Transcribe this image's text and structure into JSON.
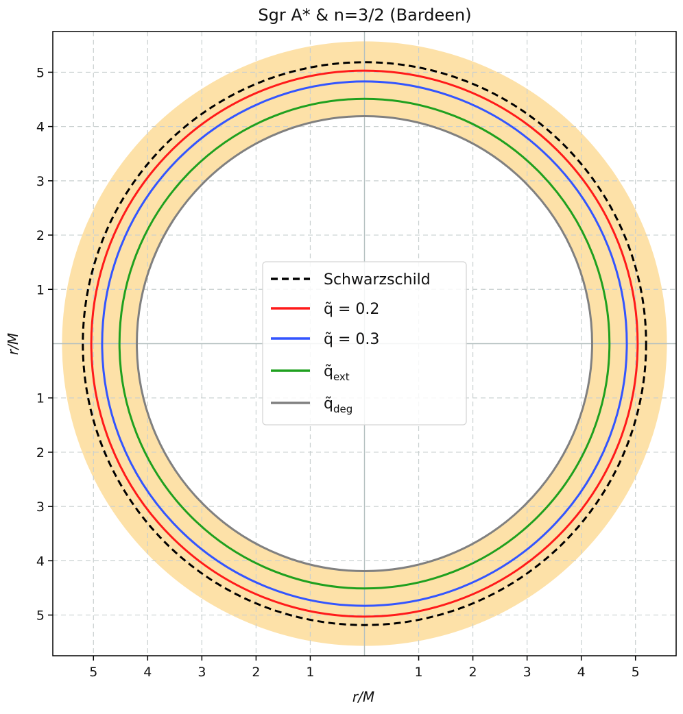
{
  "chart_data": {
    "type": "line",
    "title": "Sgr A* & n=3/2 (Bardeen)",
    "xlabel": "r/M",
    "ylabel": "r/M",
    "xlim": [
      -5.75,
      5.75
    ],
    "ylim": [
      -5.75,
      5.75
    ],
    "ticks": [
      -5,
      -4,
      -3,
      -2,
      -1,
      1,
      2,
      3,
      4,
      5
    ],
    "tick_labels": [
      "5",
      "4",
      "3",
      "2",
      "1",
      "1",
      "2",
      "3",
      "4",
      "5"
    ],
    "grid": true,
    "legend_position": "center",
    "band": {
      "r_inner": 4.2,
      "r_outer": 5.58,
      "color": "#fde1a8"
    },
    "series": [
      {
        "name": "Schwarzschild",
        "radius": 5.196,
        "color": "#000000",
        "dashed": true
      },
      {
        "name": "q̃ = 0.2",
        "radius": 5.04,
        "color": "#ff1a1a",
        "dashed": false
      },
      {
        "name": "q̃ = 0.3",
        "radius": 4.84,
        "color": "#3355ff",
        "dashed": false
      },
      {
        "name": "q̃",
        "name_sub": "ext",
        "radius": 4.52,
        "color": "#1fa01f",
        "dashed": false
      },
      {
        "name": "q̃",
        "name_sub": "deg",
        "radius": 4.2,
        "color": "#808080",
        "dashed": false
      }
    ]
  }
}
